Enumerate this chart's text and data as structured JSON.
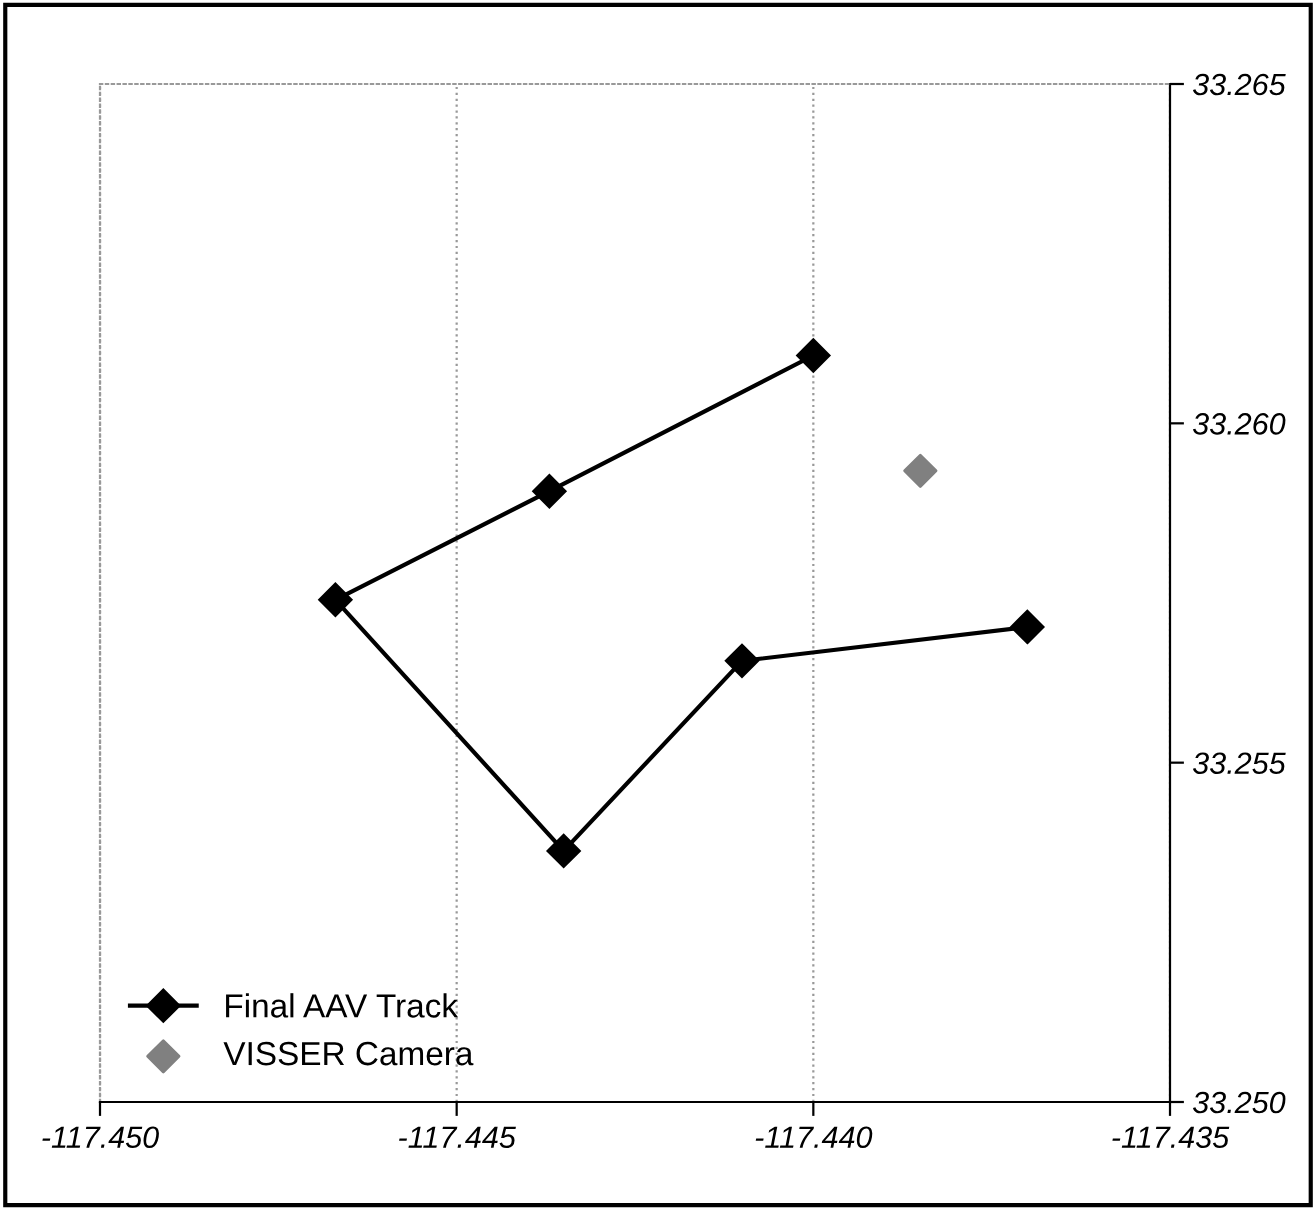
{
  "chart_data": {
    "type": "line",
    "series": [
      {
        "name": "Final AAV Track",
        "color": "#000000",
        "marker": "diamond",
        "x": [
          -117.44,
          -117.4437,
          -117.4467,
          -117.4435,
          -117.441,
          -117.437
        ],
        "values": [
          33.261,
          33.259,
          33.2574,
          33.2537,
          33.2565,
          33.257
        ]
      },
      {
        "name": "VISSER Camera",
        "type": "scatter",
        "color": "#808080",
        "marker": "diamond",
        "x": [
          -117.4385
        ],
        "values": [
          33.2593
        ]
      }
    ],
    "xlim": [
      -117.45,
      -117.435
    ],
    "xticks": [
      {
        "value": -117.45,
        "label": "-117.450"
      },
      {
        "value": -117.445,
        "label": "-117.445"
      },
      {
        "value": -117.44,
        "label": "-117.440"
      },
      {
        "value": -117.435,
        "label": "-117.435"
      }
    ],
    "ylim": [
      33.25,
      33.265
    ],
    "yticks": [
      {
        "value": 33.25,
        "label": "33.250"
      },
      {
        "value": 33.255,
        "label": "33.255"
      },
      {
        "value": 33.26,
        "label": "33.260"
      },
      {
        "value": 33.265,
        "label": "33.265"
      }
    ],
    "grid": "x",
    "legend": "bottom left"
  }
}
